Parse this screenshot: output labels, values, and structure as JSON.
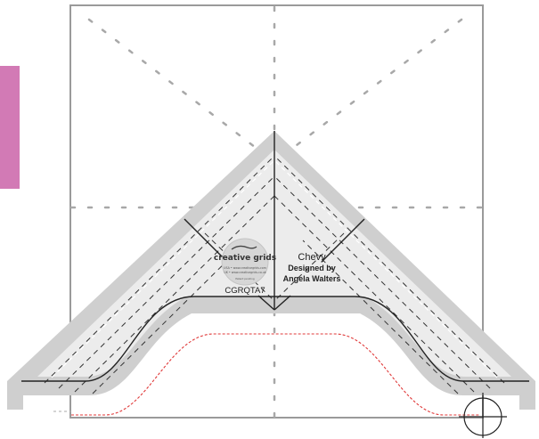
{
  "colors": {
    "page_background": "#ffffff",
    "pink_tab": "#d27ab5",
    "ruler_outer": "#cfcfcf",
    "ruler_inner": "#ececec",
    "frame_line": "#9a9a9a",
    "guide_dash": "#a8a8a8",
    "stitch_dash": "#e03a3a",
    "ink": "#222222"
  },
  "ruler": {
    "name": "Chevy",
    "designer_line1": "Designed by",
    "designer_line2": "Angela Walters",
    "product_code": "CGRQTA7",
    "logo": {
      "brand": "creative grids",
      "fine_print_line1": "USA • www.creativegrids.com",
      "fine_print_line2": "UK • www.creativegrids.co.uk",
      "patent_text": "Patent pending"
    }
  },
  "icons": {
    "registration_mark": "crosshair-circle-icon",
    "brand_mark": "creative-grids-logo"
  }
}
